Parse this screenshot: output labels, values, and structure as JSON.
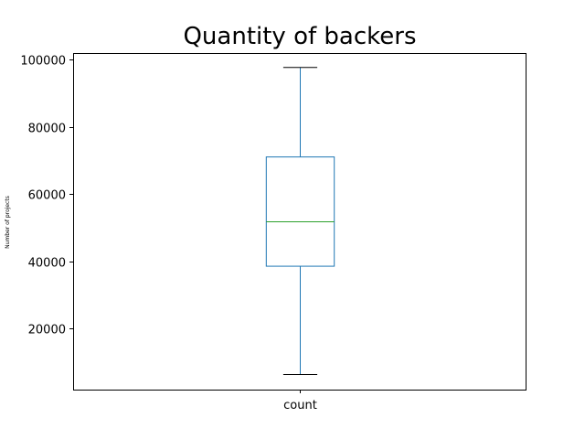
{
  "chart_data": {
    "type": "box",
    "title": "Quantity of backers",
    "xlabel": "",
    "ylabel": "Number of projects",
    "categories": [
      "count"
    ],
    "boxes": [
      {
        "name": "count",
        "whisker_low": 6400,
        "q1": 38600,
        "median": 51800,
        "q3": 71100,
        "whisker_high": 97700
      }
    ],
    "ylim": [
      1900,
      102000
    ],
    "yticks": [
      20000,
      40000,
      60000,
      80000,
      100000
    ],
    "ytick_labels": [
      "20000",
      "40000",
      "60000",
      "80000",
      "100000"
    ],
    "grid": false,
    "legend": "none"
  },
  "colors": {
    "box": "#1f77b4",
    "median": "#2ca02c",
    "cap": "#000000",
    "frame": "#000000"
  }
}
